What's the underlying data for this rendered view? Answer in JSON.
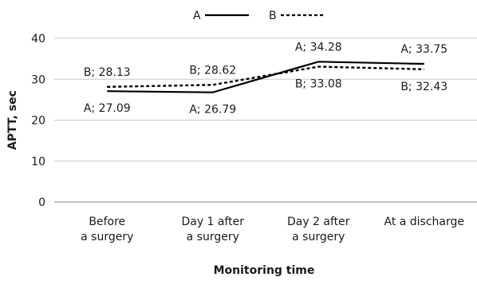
{
  "chart_data": {
    "type": "line",
    "title": "",
    "xlabel": "Monitoring time",
    "ylabel": "APTT, sec",
    "ylim": [
      0,
      40
    ],
    "yticks": [
      0,
      10,
      20,
      30,
      40
    ],
    "grid": "horizontal",
    "legend_position": "top-center",
    "categories": [
      [
        "Before",
        "a surgery"
      ],
      [
        "Day 1 after",
        "a surgery"
      ],
      [
        "Day 2 after",
        "a surgery"
      ],
      [
        "At a discharge"
      ]
    ],
    "series": [
      {
        "name": "A",
        "style": "solid",
        "color": "#000000",
        "values": [
          27.09,
          26.79,
          34.28,
          33.75
        ],
        "labels": [
          "A; 27.09",
          "A; 26.79",
          "A; 34.28",
          "A; 33.75"
        ]
      },
      {
        "name": "B",
        "style": "dashed",
        "color": "#000000",
        "values": [
          28.13,
          28.62,
          33.08,
          32.43
        ],
        "labels": [
          "B; 28.13",
          "B; 28.62",
          "B; 33.08",
          "B; 32.43"
        ]
      }
    ]
  }
}
